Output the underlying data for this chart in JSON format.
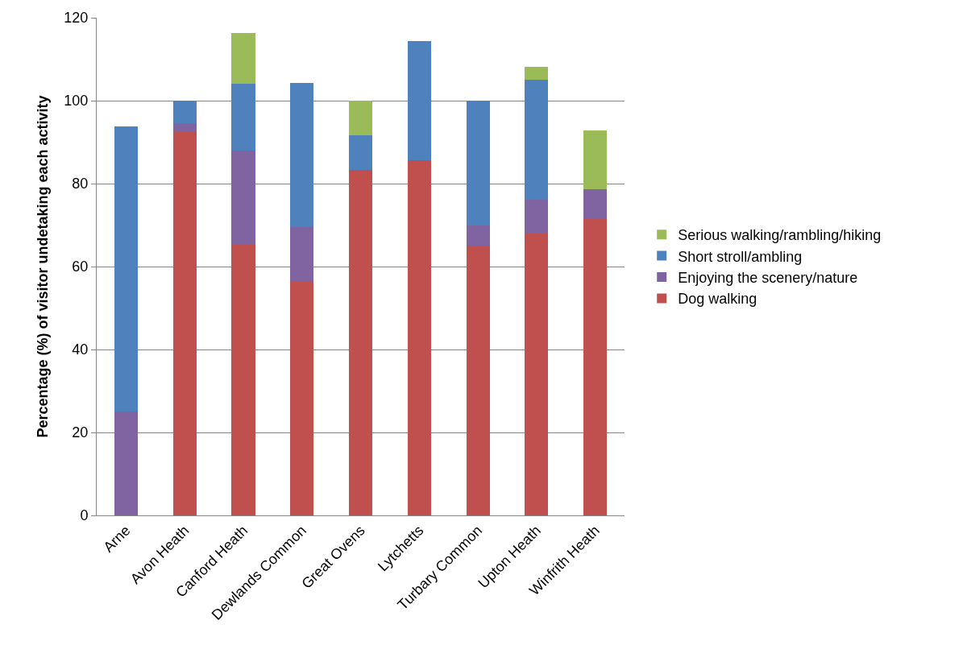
{
  "chart_data": {
    "type": "bar",
    "stacked": true,
    "ylabel": "Percentage (%) of visitor undetaking each activity",
    "categories": [
      "Arne",
      "Avon Heath",
      "Canford Heath",
      "Dewlands Common",
      "Great Ovens",
      "Lytchetts",
      "Turbary Common",
      "Upton Heath",
      "Winfrith Heath"
    ],
    "series": [
      {
        "name": "Dog walking",
        "color": "#c0504d",
        "values": [
          0,
          92.5,
          65.3,
          56.5,
          83.3,
          85.7,
          65,
          67.9,
          71.4
        ]
      },
      {
        "name": "Enjoying the scenery/nature",
        "color": "#8064a2",
        "values": [
          25,
          2,
          22.7,
          13.1,
          0,
          0,
          5,
          8.2,
          7.2
        ]
      },
      {
        "name": "Short stroll/ambling",
        "color": "#4f81bd",
        "values": [
          68.7,
          5.5,
          16,
          34.7,
          8.3,
          28.6,
          30,
          29,
          0
        ]
      },
      {
        "name": "Serious walking/rambling/hiking",
        "color": "#9bbb59",
        "values": [
          0,
          0,
          12.3,
          0,
          8.4,
          0,
          0,
          3.1,
          14.2
        ]
      }
    ],
    "ylim": [
      0,
      120
    ],
    "yticks": [
      0,
      20,
      40,
      60,
      80,
      100,
      120
    ],
    "grid": "y",
    "legend": "right"
  }
}
